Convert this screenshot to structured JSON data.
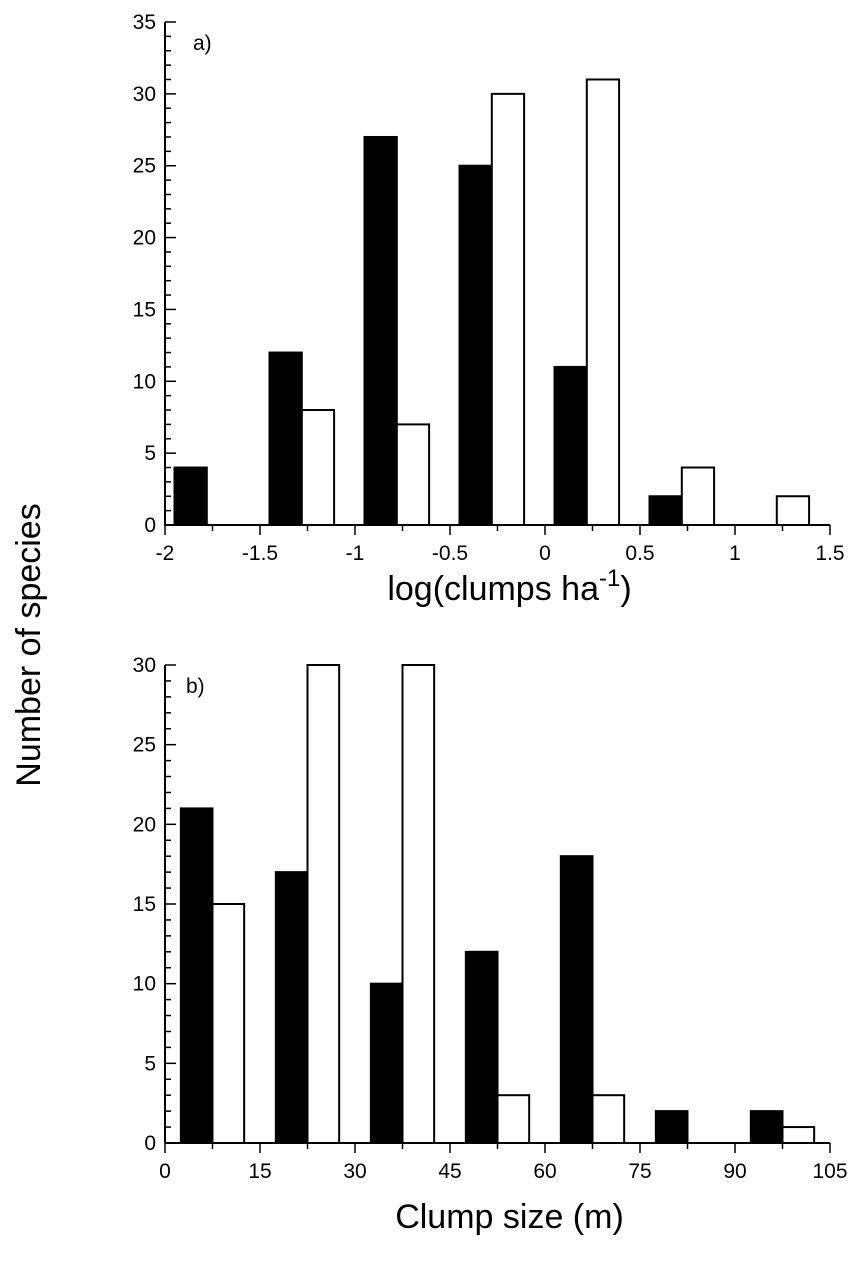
{
  "ylabel": "Number of species",
  "colors": {
    "filled": "#000000",
    "open": "#ffffff",
    "stroke": "#000000"
  },
  "chart_data": [
    {
      "type": "bar",
      "panel_label": "a)",
      "xlabel_main": "log(clumps ha",
      "xlabel_sup": "-1",
      "xlabel_close": ")",
      "xlim": [
        -2,
        1.5
      ],
      "ylim": [
        0,
        35
      ],
      "x_ticks": [
        "-2",
        "-1.5",
        "-1",
        "-0.5",
        "0",
        "0.5",
        "1",
        "1.5"
      ],
      "y_ticks": [
        "0",
        "5",
        "10",
        "15",
        "20",
        "25",
        "30",
        "35"
      ],
      "series": [
        {
          "fill": "black",
          "bins": [
            {
              "x0": -1.95,
              "x1": -1.78,
              "value": 4
            },
            {
              "x0": -1.45,
              "x1": -1.28,
              "value": 12
            },
            {
              "x0": -0.95,
              "x1": -0.78,
              "value": 27
            },
            {
              "x0": -0.45,
              "x1": -0.28,
              "value": 25
            },
            {
              "x0": 0.05,
              "x1": 0.22,
              "value": 11
            },
            {
              "x0": 0.55,
              "x1": 0.72,
              "value": 2
            }
          ]
        },
        {
          "fill": "white",
          "bins": [
            {
              "x0": -1.28,
              "x1": -1.11,
              "value": 8
            },
            {
              "x0": -0.78,
              "x1": -0.61,
              "value": 7
            },
            {
              "x0": -0.28,
              "x1": -0.11,
              "value": 30
            },
            {
              "x0": 0.22,
              "x1": 0.39,
              "value": 31
            },
            {
              "x0": 0.72,
              "x1": 0.89,
              "value": 4
            },
            {
              "x0": 1.22,
              "x1": 1.39,
              "value": 2
            }
          ]
        }
      ]
    },
    {
      "type": "bar",
      "panel_label": "b)",
      "xlabel_main": "Clump size (m)",
      "xlim": [
        0,
        105
      ],
      "ylim": [
        0,
        30
      ],
      "x_ticks": [
        "0",
        "15",
        "30",
        "45",
        "60",
        "75",
        "90",
        "105"
      ],
      "y_ticks": [
        "0",
        "5",
        "10",
        "15",
        "20",
        "25",
        "30"
      ],
      "series": [
        {
          "fill": "black",
          "bins": [
            {
              "x0": 2.5,
              "x1": 7.5,
              "value": 21
            },
            {
              "x0": 17.5,
              "x1": 22.5,
              "value": 17
            },
            {
              "x0": 32.5,
              "x1": 37.5,
              "value": 10
            },
            {
              "x0": 47.5,
              "x1": 52.5,
              "value": 12
            },
            {
              "x0": 62.5,
              "x1": 67.5,
              "value": 18
            },
            {
              "x0": 77.5,
              "x1": 82.5,
              "value": 2
            },
            {
              "x0": 92.5,
              "x1": 97.5,
              "value": 2
            }
          ]
        },
        {
          "fill": "white",
          "bins": [
            {
              "x0": 7.5,
              "x1": 12.5,
              "value": 15
            },
            {
              "x0": 22.5,
              "x1": 27.5,
              "value": 30
            },
            {
              "x0": 37.5,
              "x1": 42.5,
              "value": 30
            },
            {
              "x0": 52.5,
              "x1": 57.5,
              "value": 3
            },
            {
              "x0": 67.5,
              "x1": 72.5,
              "value": 3
            },
            {
              "x0": 97.5,
              "x1": 102.5,
              "value": 1
            }
          ]
        }
      ]
    }
  ]
}
